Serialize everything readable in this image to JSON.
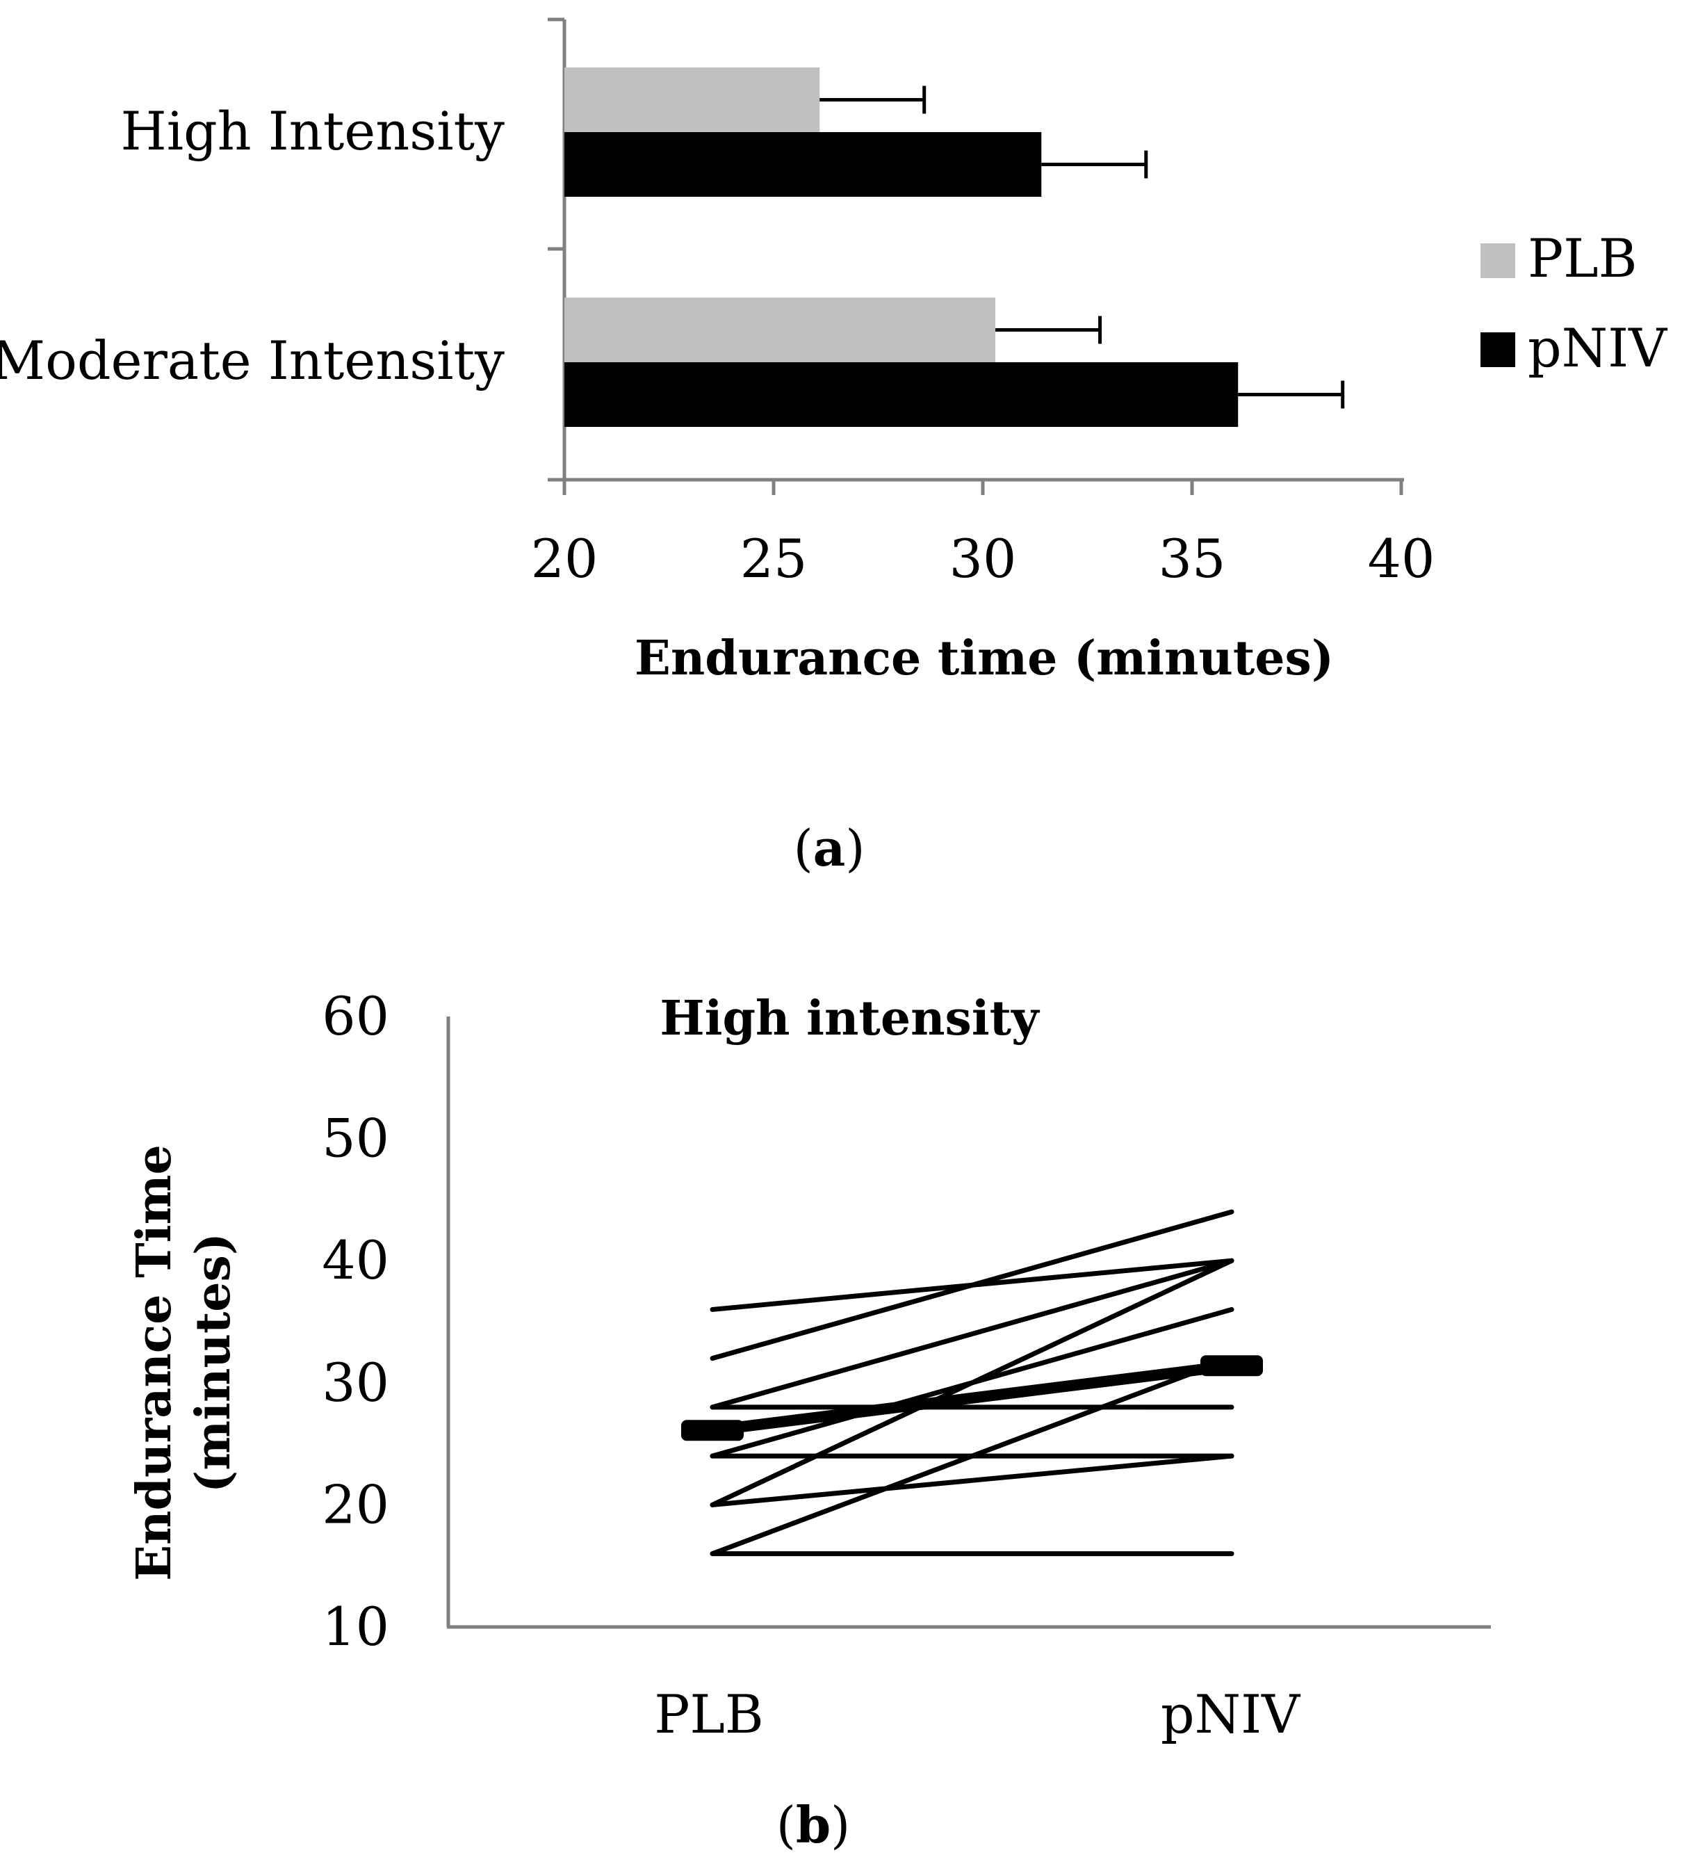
{
  "chart_data": [
    {
      "type": "bar",
      "orientation": "horizontal",
      "panel_label": "(a)",
      "categories": [
        "High Intensity",
        "Moderate Intensity"
      ],
      "series": [
        {
          "name": "PLB",
          "color": "#c0c0c0",
          "values": [
            26.1,
            30.3
          ],
          "error": [
            2.5,
            2.5
          ]
        },
        {
          "name": "pNIV",
          "color": "#000000",
          "values": [
            31.4,
            36.1
          ],
          "error": [
            2.5,
            2.5
          ]
        }
      ],
      "xlabel": "Endurance time (minutes)",
      "ylabel": "",
      "xlim": [
        20,
        40
      ],
      "xticks": [
        "20",
        "25",
        "30",
        "35",
        "40"
      ],
      "legend": "right"
    },
    {
      "type": "line",
      "panel_label": "(b)",
      "title": "High intensity",
      "categories": [
        "PLB",
        "pNIV"
      ],
      "ylabel": "Endurance Time (minutes)",
      "ylabel_lines": [
        "Endurance Time",
        "(minutes)"
      ],
      "ylim": [
        10,
        60
      ],
      "yticks": [
        "10",
        "20",
        "30",
        "40",
        "50",
        "60"
      ],
      "subjects": [
        [
          36,
          40
        ],
        [
          32,
          44
        ],
        [
          28,
          40
        ],
        [
          28,
          28
        ],
        [
          24,
          36
        ],
        [
          24,
          24
        ],
        [
          20,
          40
        ],
        [
          20,
          24
        ],
        [
          16,
          32
        ],
        [
          16,
          16
        ]
      ],
      "mean": {
        "name": "Mean",
        "values": [
          26.1,
          31.4
        ]
      }
    }
  ]
}
